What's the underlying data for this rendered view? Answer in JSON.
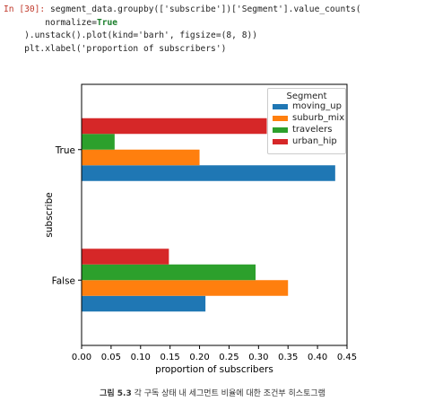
{
  "code": {
    "prompt": "In [30]:",
    "line1": " segment_data.groupby(['subscribe'])['Segment'].value_counts(",
    "line2_pre": "        normalize=",
    "line2_kw": "True",
    "line3": "    ).unstack().plot(kind='barh', figsize=(8, 8))",
    "line4": "    plt.xlabel('proportion of subscribers')"
  },
  "caption": {
    "label": "그림 5.3",
    "text": " 각 구독 상태 내 세그먼트 비율에 대한 조건부 히스토그램"
  },
  "chart_data": {
    "type": "bar",
    "orientation": "horizontal",
    "categories": [
      "False",
      "True"
    ],
    "xlabel": "proportion of subscribers",
    "ylabel": "subscribe",
    "xlim": [
      0.0,
      0.45
    ],
    "xticks": [
      "0.00",
      "0.05",
      "0.10",
      "0.15",
      "0.20",
      "0.25",
      "0.30",
      "0.35",
      "0.40",
      "0.45"
    ],
    "legend_title": "Segment",
    "legend_position": "top-right",
    "grid": false,
    "series": [
      {
        "name": "moving_up",
        "color": "#1f77b4",
        "values": [
          0.21,
          0.43
        ]
      },
      {
        "name": "suburb_mix",
        "color": "#ff7f0e",
        "values": [
          0.35,
          0.2
        ]
      },
      {
        "name": "travelers",
        "color": "#2ca02c",
        "values": [
          0.295,
          0.056
        ]
      },
      {
        "name": "urban_hip",
        "color": "#d62728",
        "values": [
          0.148,
          0.314
        ]
      }
    ]
  }
}
